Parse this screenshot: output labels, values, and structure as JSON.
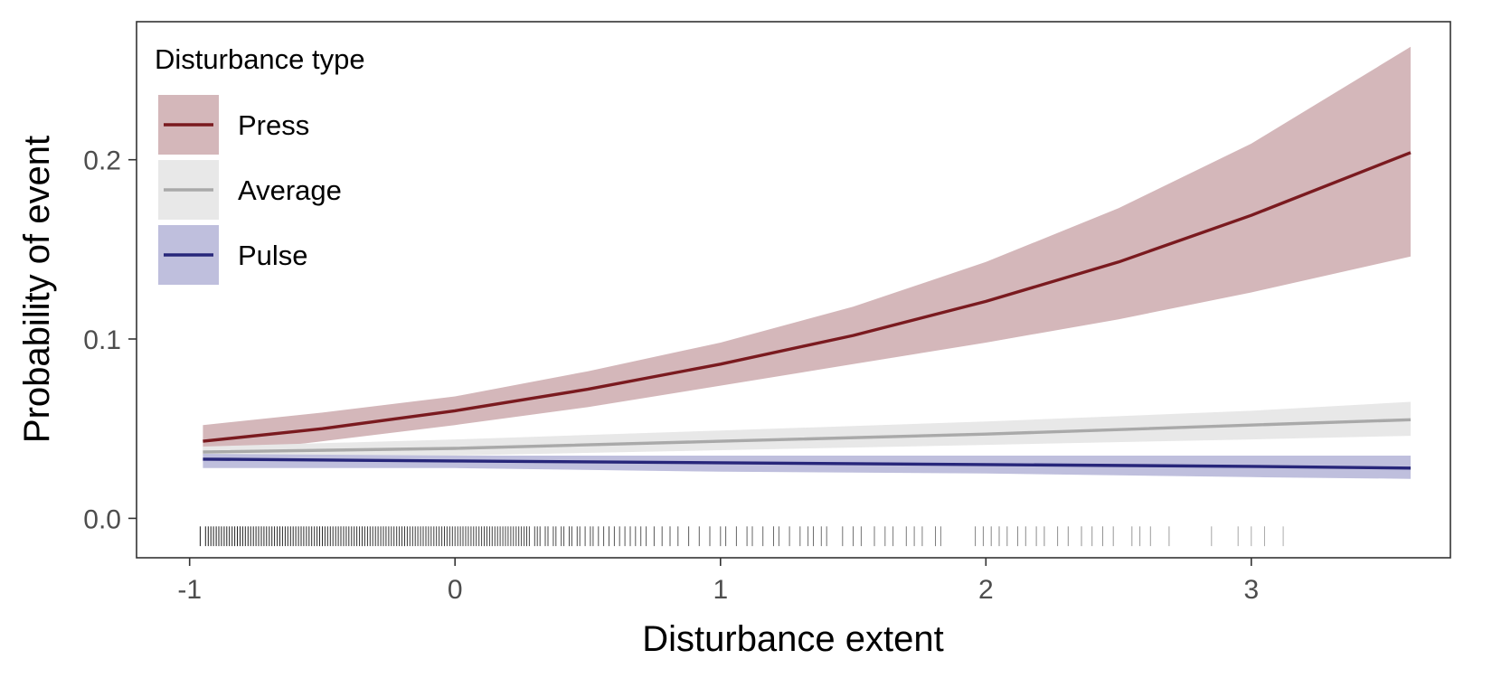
{
  "chart_data": {
    "type": "line",
    "xlabel": "Disturbance extent",
    "ylabel": "Probability of event",
    "xlim": [
      -1.2,
      3.75
    ],
    "ylim": [
      -0.022,
      0.277
    ],
    "x_ticks": [
      -1,
      0,
      1,
      2,
      3
    ],
    "x_tick_labels": [
      "-1",
      "0",
      "1",
      "2",
      "3"
    ],
    "y_ticks": [
      0.0,
      0.1,
      0.2
    ],
    "y_tick_labels": [
      "0.0",
      "0.1",
      "0.2"
    ],
    "grid": false,
    "legend": {
      "title": "Disturbance type",
      "position": "top-left",
      "entries": [
        "Press",
        "Average",
        "Pulse"
      ]
    },
    "series": [
      {
        "name": "Press",
        "color": "#7a1a1f",
        "ribbon_color": "#d4b7ba",
        "x": [
          -0.95,
          -0.5,
          0,
          0.5,
          1,
          1.5,
          2,
          2.5,
          3,
          3.6
        ],
        "y": [
          0.043,
          0.05,
          0.06,
          0.072,
          0.086,
          0.102,
          0.121,
          0.143,
          0.169,
          0.204
        ],
        "lower": [
          0.035,
          0.043,
          0.052,
          0.062,
          0.074,
          0.086,
          0.098,
          0.111,
          0.126,
          0.146
        ],
        "upper": [
          0.052,
          0.059,
          0.068,
          0.082,
          0.098,
          0.118,
          0.143,
          0.173,
          0.209,
          0.263
        ]
      },
      {
        "name": "Average",
        "color": "#a9a9a9",
        "ribbon_color": "#e8e8e8",
        "x": [
          -0.95,
          0,
          1,
          2,
          3,
          3.6
        ],
        "y": [
          0.037,
          0.039,
          0.043,
          0.047,
          0.052,
          0.055
        ],
        "lower": [
          0.033,
          0.035,
          0.038,
          0.041,
          0.044,
          0.046
        ],
        "upper": [
          0.04,
          0.044,
          0.049,
          0.054,
          0.06,
          0.065
        ]
      },
      {
        "name": "Pulse",
        "color": "#27267a",
        "ribbon_color": "#bfbfdd",
        "x": [
          -0.95,
          0,
          1,
          2,
          3,
          3.6
        ],
        "y": [
          0.033,
          0.032,
          0.031,
          0.03,
          0.029,
          0.028
        ],
        "lower": [
          0.028,
          0.028,
          0.026,
          0.025,
          0.023,
          0.022
        ],
        "upper": [
          0.036,
          0.035,
          0.035,
          0.035,
          0.035,
          0.035
        ]
      }
    ],
    "rug": {
      "color": "#000000",
      "x": [
        -0.96,
        -0.94,
        -0.93,
        -0.92,
        -0.91,
        -0.9,
        -0.89,
        -0.88,
        -0.87,
        -0.86,
        -0.85,
        -0.84,
        -0.83,
        -0.82,
        -0.81,
        -0.8,
        -0.79,
        -0.78,
        -0.77,
        -0.76,
        -0.75,
        -0.74,
        -0.73,
        -0.72,
        -0.71,
        -0.7,
        -0.69,
        -0.68,
        -0.67,
        -0.66,
        -0.65,
        -0.64,
        -0.63,
        -0.62,
        -0.61,
        -0.6,
        -0.59,
        -0.58,
        -0.57,
        -0.56,
        -0.55,
        -0.54,
        -0.53,
        -0.52,
        -0.51,
        -0.5,
        -0.49,
        -0.48,
        -0.47,
        -0.46,
        -0.45,
        -0.44,
        -0.43,
        -0.42,
        -0.41,
        -0.4,
        -0.39,
        -0.38,
        -0.37,
        -0.36,
        -0.35,
        -0.34,
        -0.33,
        -0.32,
        -0.31,
        -0.3,
        -0.29,
        -0.28,
        -0.27,
        -0.26,
        -0.25,
        -0.24,
        -0.23,
        -0.22,
        -0.21,
        -0.2,
        -0.19,
        -0.18,
        -0.17,
        -0.16,
        -0.15,
        -0.14,
        -0.13,
        -0.12,
        -0.11,
        -0.1,
        -0.09,
        -0.08,
        -0.07,
        -0.06,
        -0.05,
        -0.04,
        -0.03,
        -0.02,
        -0.01,
        0.0,
        0.01,
        0.02,
        0.03,
        0.04,
        0.05,
        0.06,
        0.07,
        0.08,
        0.09,
        0.1,
        0.11,
        0.12,
        0.13,
        0.14,
        0.15,
        0.16,
        0.17,
        0.18,
        0.19,
        0.2,
        0.21,
        0.22,
        0.23,
        0.24,
        0.25,
        0.26,
        0.27,
        0.28,
        0.3,
        0.31,
        0.32,
        0.34,
        0.35,
        0.37,
        0.38,
        0.4,
        0.41,
        0.43,
        0.44,
        0.46,
        0.47,
        0.49,
        0.51,
        0.52,
        0.54,
        0.56,
        0.58,
        0.6,
        0.62,
        0.64,
        0.66,
        0.68,
        0.7,
        0.72,
        0.75,
        0.78,
        0.81,
        0.84,
        0.88,
        0.92,
        0.96,
        1.0,
        1.02,
        1.06,
        1.1,
        1.12,
        1.16,
        1.2,
        1.22,
        1.26,
        1.3,
        1.33,
        1.35,
        1.38,
        1.4,
        1.46,
        1.5,
        1.53,
        1.58,
        1.62,
        1.65,
        1.7,
        1.73,
        1.76,
        1.81,
        1.83,
        1.96,
        1.99,
        2.02,
        2.05,
        2.08,
        2.12,
        2.15,
        2.19,
        2.22,
        2.27,
        2.31,
        2.36,
        2.4,
        2.44,
        2.48,
        2.55,
        2.58,
        2.62,
        2.69,
        2.85,
        2.95,
        3.0,
        3.05,
        3.12
      ]
    }
  }
}
